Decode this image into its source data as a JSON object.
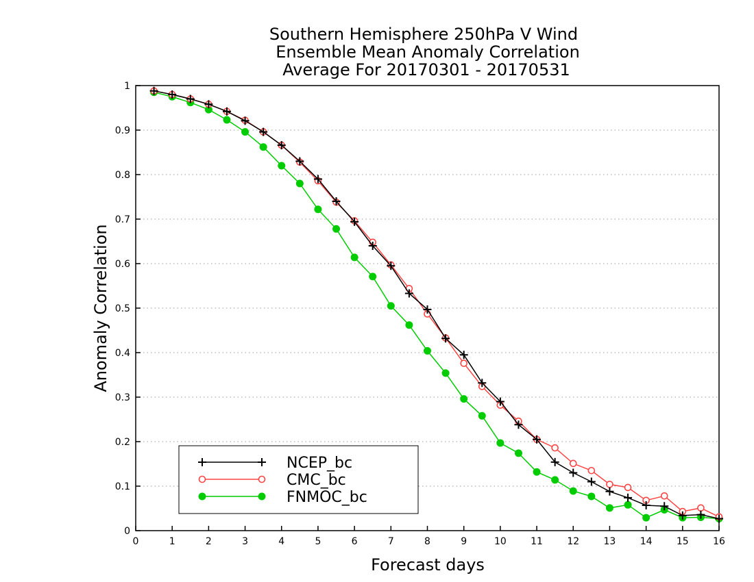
{
  "chart_data": {
    "type": "line",
    "title": [
      "Southern Hemisphere 250hPa V Wind",
      "Ensemble Mean Anomaly Correlation",
      "Average For 20170301 - 20170531"
    ],
    "xlabel": "Forecast days",
    "ylabel": "Anomaly Correlation",
    "xlim": [
      0,
      16
    ],
    "ylim": [
      0,
      1
    ],
    "x_ticks": [
      0,
      1,
      2,
      3,
      4,
      5,
      6,
      7,
      8,
      9,
      10,
      11,
      12,
      13,
      14,
      15,
      16
    ],
    "y_ticks": [
      0,
      0.1,
      0.2,
      0.3,
      0.4,
      0.5,
      0.6,
      0.7,
      0.8,
      0.9,
      1
    ],
    "y_tick_labels": [
      "0",
      "0.1",
      "0.2",
      "0.3",
      "0.4",
      "0.5",
      "0.6",
      "0.7",
      "0.8",
      "0.9",
      "1"
    ],
    "grid": "horizontal-dotted",
    "legend_position": "bottom-left",
    "x": [
      0.5,
      1,
      1.5,
      2,
      2.5,
      3,
      3.5,
      4,
      4.5,
      5,
      5.5,
      6,
      6.5,
      7,
      7.5,
      8,
      8.5,
      9,
      9.5,
      10,
      10.5,
      11,
      11.5,
      12,
      12.5,
      13,
      13.5,
      14,
      14.5,
      15,
      15.5,
      16
    ],
    "series": [
      {
        "name": "NCEP_bc",
        "color": "#000000",
        "marker": "plus",
        "values": [
          0.988,
          0.98,
          0.97,
          0.958,
          0.942,
          0.921,
          0.896,
          0.866,
          0.83,
          0.79,
          0.74,
          0.694,
          0.64,
          0.595,
          0.533,
          0.497,
          0.432,
          0.395,
          0.332,
          0.29,
          0.238,
          0.205,
          0.154,
          0.13,
          0.11,
          0.088,
          0.074,
          0.057,
          0.055,
          0.034,
          0.036,
          0.027
        ]
      },
      {
        "name": "CMC_bc",
        "color": "#ff4444",
        "marker": "open-circle",
        "values": [
          0.988,
          0.98,
          0.97,
          0.958,
          0.942,
          0.922,
          0.896,
          0.866,
          0.828,
          0.786,
          0.738,
          0.696,
          0.648,
          0.597,
          0.544,
          0.487,
          0.433,
          0.376,
          0.324,
          0.282,
          0.246,
          0.205,
          0.186,
          0.151,
          0.135,
          0.104,
          0.097,
          0.068,
          0.078,
          0.043,
          0.051,
          0.031
        ]
      },
      {
        "name": "FNMOC_bc",
        "color": "#00cc00",
        "marker": "filled-circle",
        "values": [
          0.985,
          0.975,
          0.962,
          0.946,
          0.923,
          0.896,
          0.862,
          0.82,
          0.78,
          0.722,
          0.678,
          0.614,
          0.571,
          0.505,
          0.462,
          0.404,
          0.354,
          0.296,
          0.258,
          0.197,
          0.174,
          0.132,
          0.114,
          0.089,
          0.077,
          0.051,
          0.058,
          0.029,
          0.047,
          0.029,
          0.03,
          0.027
        ]
      }
    ]
  }
}
